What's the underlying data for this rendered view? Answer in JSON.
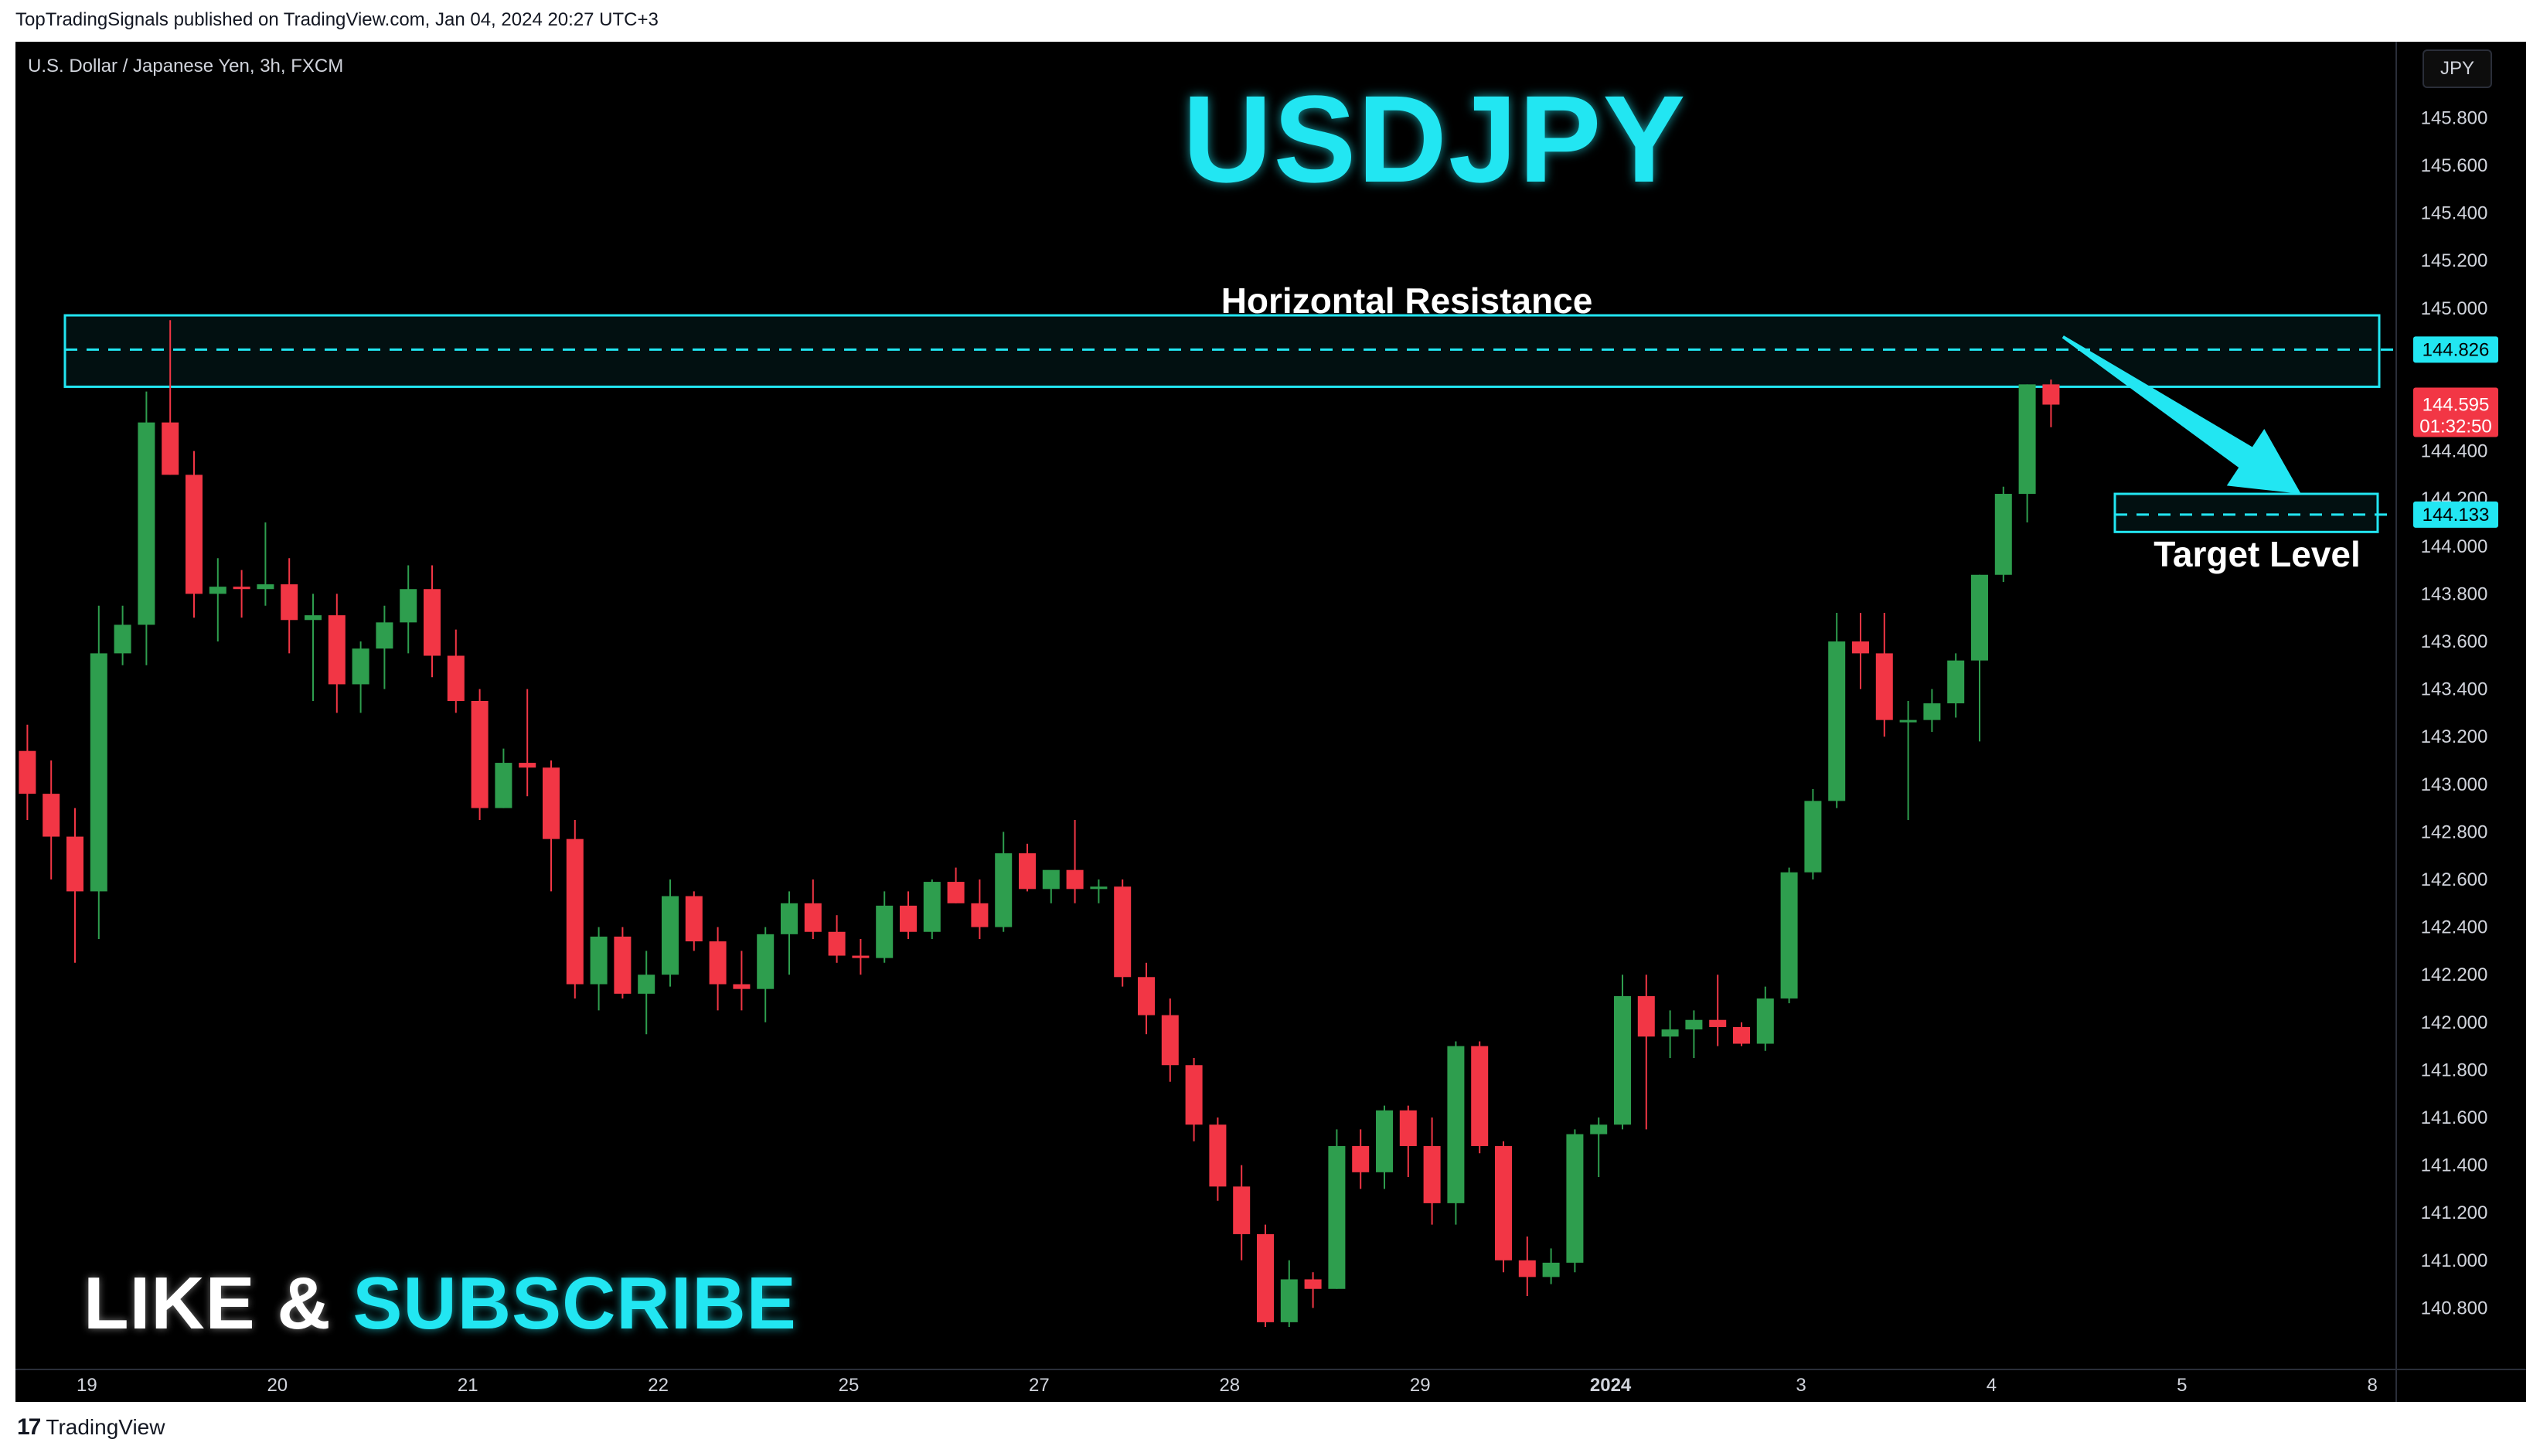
{
  "header": {
    "published_line": "TopTradingSignals published on TradingView.com, Jan 04, 2024 20:27 UTC+3"
  },
  "symbol_info": "U.S. Dollar / Japanese Yen, 3h, FXCM",
  "currency_badge": "JPY",
  "title": "USDJPY",
  "annotations": {
    "resistance_label": "Horizontal Resistance",
    "target_label": "Target Level",
    "resistance_price": "144.826",
    "target_price": "144.133",
    "last_price": "144.595",
    "countdown": "01:32:50"
  },
  "cta": {
    "like": "LIKE &",
    "subscribe": "SUBSCRIBE"
  },
  "brand": {
    "logo": "17",
    "name": "TradingView"
  },
  "colors": {
    "up": "#2e9e4e",
    "down": "#f23645",
    "accent": "#22e6f2",
    "background": "#000000",
    "text": "#d1d4dc"
  },
  "chart_data": {
    "type": "candlestick",
    "y_axis": {
      "range": [
        140.6,
        146.0
      ],
      "ticks": [
        "145.800",
        "145.600",
        "145.400",
        "145.200",
        "145.000",
        "144.400",
        "144.200",
        "144.000",
        "143.800",
        "143.600",
        "143.400",
        "143.200",
        "143.000",
        "142.800",
        "142.600",
        "142.400",
        "142.200",
        "142.000",
        "141.800",
        "141.600",
        "141.400",
        "141.200",
        "141.000",
        "140.800"
      ]
    },
    "x_axis": {
      "ticks": [
        {
          "label": "19",
          "bar": 2.5
        },
        {
          "label": "20",
          "bar": 10.5
        },
        {
          "label": "21",
          "bar": 18.5
        },
        {
          "label": "22",
          "bar": 26.5
        },
        {
          "label": "25",
          "bar": 34.5
        },
        {
          "label": "27",
          "bar": 42.5
        },
        {
          "label": "28",
          "bar": 50.5
        },
        {
          "label": "29",
          "bar": 58.5
        },
        {
          "label": "2024",
          "bar": 66.5,
          "bold": true
        },
        {
          "label": "3",
          "bar": 74.5
        },
        {
          "label": "4",
          "bar": 82.5
        },
        {
          "label": "5",
          "bar": 90.5
        },
        {
          "label": "8",
          "bar": 98.5
        }
      ],
      "total_slots": 102
    },
    "candles": [
      {
        "o": 143.14,
        "h": 143.25,
        "l": 142.85,
        "c": 142.96
      },
      {
        "o": 142.96,
        "h": 143.1,
        "l": 142.6,
        "c": 142.78
      },
      {
        "o": 142.78,
        "h": 142.9,
        "l": 142.25,
        "c": 142.55
      },
      {
        "o": 142.55,
        "h": 143.75,
        "l": 142.35,
        "c": 143.55
      },
      {
        "o": 143.55,
        "h": 143.75,
        "l": 143.5,
        "c": 143.67
      },
      {
        "o": 143.67,
        "h": 144.65,
        "l": 143.5,
        "c": 144.52
      },
      {
        "o": 144.52,
        "h": 144.95,
        "l": 144.3,
        "c": 144.3
      },
      {
        "o": 144.3,
        "h": 144.4,
        "l": 143.7,
        "c": 143.8
      },
      {
        "o": 143.8,
        "h": 143.95,
        "l": 143.6,
        "c": 143.83
      },
      {
        "o": 143.83,
        "h": 143.9,
        "l": 143.7,
        "c": 143.82
      },
      {
        "o": 143.82,
        "h": 144.1,
        "l": 143.75,
        "c": 143.84
      },
      {
        "o": 143.84,
        "h": 143.95,
        "l": 143.55,
        "c": 143.69
      },
      {
        "o": 143.69,
        "h": 143.8,
        "l": 143.35,
        "c": 143.71
      },
      {
        "o": 143.71,
        "h": 143.8,
        "l": 143.3,
        "c": 143.42
      },
      {
        "o": 143.42,
        "h": 143.6,
        "l": 143.3,
        "c": 143.57
      },
      {
        "o": 143.57,
        "h": 143.75,
        "l": 143.4,
        "c": 143.68
      },
      {
        "o": 143.68,
        "h": 143.92,
        "l": 143.55,
        "c": 143.82
      },
      {
        "o": 143.82,
        "h": 143.92,
        "l": 143.45,
        "c": 143.54
      },
      {
        "o": 143.54,
        "h": 143.65,
        "l": 143.3,
        "c": 143.35
      },
      {
        "o": 143.35,
        "h": 143.4,
        "l": 142.85,
        "c": 142.9
      },
      {
        "o": 142.9,
        "h": 143.15,
        "l": 142.9,
        "c": 143.09
      },
      {
        "o": 143.09,
        "h": 143.4,
        "l": 142.95,
        "c": 143.07
      },
      {
        "o": 143.07,
        "h": 143.1,
        "l": 142.55,
        "c": 142.77
      },
      {
        "o": 142.77,
        "h": 142.85,
        "l": 142.1,
        "c": 142.16
      },
      {
        "o": 142.16,
        "h": 142.4,
        "l": 142.05,
        "c": 142.36
      },
      {
        "o": 142.36,
        "h": 142.4,
        "l": 142.1,
        "c": 142.12
      },
      {
        "o": 142.12,
        "h": 142.3,
        "l": 141.95,
        "c": 142.2
      },
      {
        "o": 142.2,
        "h": 142.6,
        "l": 142.15,
        "c": 142.53
      },
      {
        "o": 142.53,
        "h": 142.55,
        "l": 142.3,
        "c": 142.34
      },
      {
        "o": 142.34,
        "h": 142.4,
        "l": 142.05,
        "c": 142.16
      },
      {
        "o": 142.16,
        "h": 142.3,
        "l": 142.05,
        "c": 142.14
      },
      {
        "o": 142.14,
        "h": 142.4,
        "l": 142.0,
        "c": 142.37
      },
      {
        "o": 142.37,
        "h": 142.55,
        "l": 142.2,
        "c": 142.5
      },
      {
        "o": 142.5,
        "h": 142.6,
        "l": 142.35,
        "c": 142.38
      },
      {
        "o": 142.38,
        "h": 142.45,
        "l": 142.25,
        "c": 142.28
      },
      {
        "o": 142.28,
        "h": 142.35,
        "l": 142.2,
        "c": 142.27
      },
      {
        "o": 142.27,
        "h": 142.55,
        "l": 142.25,
        "c": 142.49
      },
      {
        "o": 142.49,
        "h": 142.55,
        "l": 142.35,
        "c": 142.38
      },
      {
        "o": 142.38,
        "h": 142.6,
        "l": 142.35,
        "c": 142.59
      },
      {
        "o": 142.59,
        "h": 142.65,
        "l": 142.5,
        "c": 142.5
      },
      {
        "o": 142.5,
        "h": 142.6,
        "l": 142.35,
        "c": 142.4
      },
      {
        "o": 142.4,
        "h": 142.8,
        "l": 142.38,
        "c": 142.71
      },
      {
        "o": 142.71,
        "h": 142.75,
        "l": 142.55,
        "c": 142.56
      },
      {
        "o": 142.56,
        "h": 142.6,
        "l": 142.5,
        "c": 142.64
      },
      {
        "o": 142.64,
        "h": 142.85,
        "l": 142.5,
        "c": 142.56
      },
      {
        "o": 142.56,
        "h": 142.6,
        "l": 142.5,
        "c": 142.57
      },
      {
        "o": 142.57,
        "h": 142.6,
        "l": 142.15,
        "c": 142.19
      },
      {
        "o": 142.19,
        "h": 142.25,
        "l": 141.95,
        "c": 142.03
      },
      {
        "o": 142.03,
        "h": 142.1,
        "l": 141.75,
        "c": 141.82
      },
      {
        "o": 141.82,
        "h": 141.85,
        "l": 141.5,
        "c": 141.57
      },
      {
        "o": 141.57,
        "h": 141.6,
        "l": 141.25,
        "c": 141.31
      },
      {
        "o": 141.31,
        "h": 141.4,
        "l": 141.0,
        "c": 141.11
      },
      {
        "o": 141.11,
        "h": 141.15,
        "l": 140.72,
        "c": 140.74
      },
      {
        "o": 140.74,
        "h": 141.0,
        "l": 140.72,
        "c": 140.92
      },
      {
        "o": 140.92,
        "h": 140.95,
        "l": 140.8,
        "c": 140.88
      },
      {
        "o": 140.88,
        "h": 141.55,
        "l": 140.88,
        "c": 141.48
      },
      {
        "o": 141.48,
        "h": 141.55,
        "l": 141.3,
        "c": 141.37
      },
      {
        "o": 141.37,
        "h": 141.65,
        "l": 141.3,
        "c": 141.63
      },
      {
        "o": 141.63,
        "h": 141.65,
        "l": 141.35,
        "c": 141.48
      },
      {
        "o": 141.48,
        "h": 141.6,
        "l": 141.15,
        "c": 141.24
      },
      {
        "o": 141.24,
        "h": 141.92,
        "l": 141.15,
        "c": 141.9
      },
      {
        "o": 141.9,
        "h": 141.92,
        "l": 141.45,
        "c": 141.48
      },
      {
        "o": 141.48,
        "h": 141.5,
        "l": 140.95,
        "c": 141.0
      },
      {
        "o": 141.0,
        "h": 141.1,
        "l": 140.85,
        "c": 140.93
      },
      {
        "o": 140.93,
        "h": 141.05,
        "l": 140.9,
        "c": 140.99
      },
      {
        "o": 140.99,
        "h": 141.55,
        "l": 140.95,
        "c": 141.53
      },
      {
        "o": 141.53,
        "h": 141.6,
        "l": 141.35,
        "c": 141.57
      },
      {
        "o": 141.57,
        "h": 142.2,
        "l": 141.55,
        "c": 142.11
      },
      {
        "o": 142.11,
        "h": 142.2,
        "l": 141.55,
        "c": 141.94
      },
      {
        "o": 141.94,
        "h": 142.05,
        "l": 141.85,
        "c": 141.97
      },
      {
        "o": 141.97,
        "h": 142.05,
        "l": 141.85,
        "c": 142.01
      },
      {
        "o": 142.01,
        "h": 142.2,
        "l": 141.9,
        "c": 141.98
      },
      {
        "o": 141.98,
        "h": 142.0,
        "l": 141.9,
        "c": 141.91
      },
      {
        "o": 141.91,
        "h": 142.15,
        "l": 141.88,
        "c": 142.1
      },
      {
        "o": 142.1,
        "h": 142.65,
        "l": 142.08,
        "c": 142.63
      },
      {
        "o": 142.63,
        "h": 142.98,
        "l": 142.6,
        "c": 142.93
      },
      {
        "o": 142.93,
        "h": 143.72,
        "l": 142.9,
        "c": 143.6
      },
      {
        "o": 143.6,
        "h": 143.72,
        "l": 143.4,
        "c": 143.55
      },
      {
        "o": 143.55,
        "h": 143.72,
        "l": 143.2,
        "c": 143.27
      },
      {
        "o": 143.27,
        "h": 143.35,
        "l": 142.85,
        "c": 143.27
      },
      {
        "o": 143.27,
        "h": 143.4,
        "l": 143.22,
        "c": 143.34
      },
      {
        "o": 143.34,
        "h": 143.55,
        "l": 143.28,
        "c": 143.52
      },
      {
        "o": 143.52,
        "h": 143.88,
        "l": 143.18,
        "c": 143.88
      },
      {
        "o": 143.88,
        "h": 144.25,
        "l": 143.85,
        "c": 144.22
      },
      {
        "o": 144.22,
        "h": 144.68,
        "l": 144.1,
        "c": 144.68
      },
      {
        "o": 144.68,
        "h": 144.7,
        "l": 144.5,
        "c": 144.595
      }
    ],
    "resistance_zone": [
      144.67,
      144.97
    ],
    "resistance_level": 144.826,
    "target_zone": [
      144.06,
      144.22
    ],
    "target_level": 144.133,
    "last_price": 144.595,
    "arrow": {
      "from_bar": 85.5,
      "from_price": 144.88,
      "to_bar": 95.5,
      "to_price": 144.22
    }
  }
}
